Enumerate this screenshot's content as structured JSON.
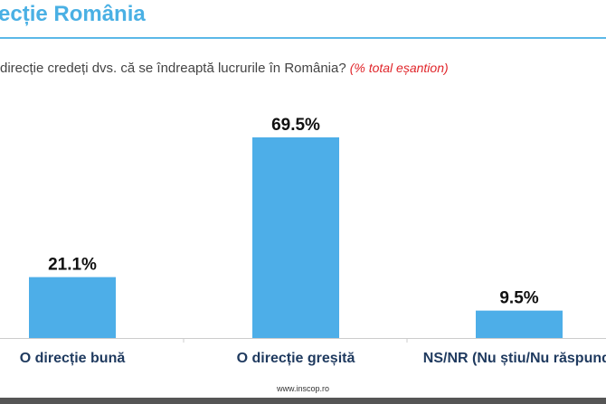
{
  "header": {
    "title": "ecție România",
    "question": "direcție credeți dvs. că se îndreaptă lucrurile în România?",
    "question_note": "(% total eșantion)"
  },
  "footer": {
    "url": "www.inscop.ro"
  },
  "chart_data": {
    "type": "bar",
    "title": "ecție România",
    "categories": [
      "O direcție bună",
      "O direcție greșită",
      "NS/NR (Nu știu/Nu răspund)"
    ],
    "values": [
      21.1,
      69.5,
      9.5
    ],
    "value_labels": [
      "21.1%",
      "69.5%",
      "9.5%"
    ],
    "ylim": [
      0,
      69.5
    ],
    "grid": false,
    "bar_color": "#4daee8",
    "unit": "%"
  }
}
